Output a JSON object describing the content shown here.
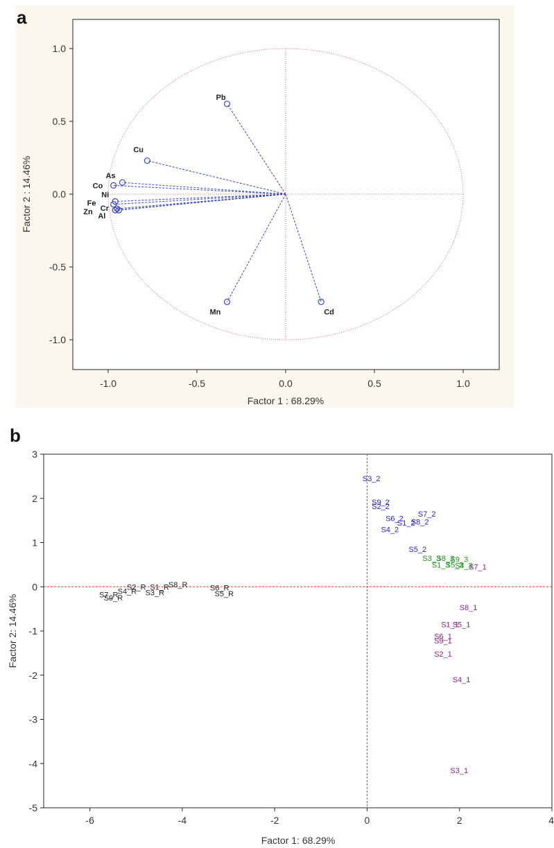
{
  "colors": {
    "loading_vector": "#3344cc",
    "circle": "#e06666",
    "ref_line": "#e06666",
    "panel_b_ref_line": "#ff3333",
    "series_R": "#222222",
    "series_1": "#882288",
    "series_2": "#2222cc",
    "series_3": "#119911"
  },
  "chart_data": [
    {
      "panel": "a",
      "type": "scatter",
      "title": "",
      "xlabel": "Factor 1 : 68.29%",
      "ylabel": "Factor 2 : 14.46%",
      "xlim": [
        -1.2,
        1.2
      ],
      "ylim": [
        -1.2,
        1.2
      ],
      "xticks": [
        "-1.0",
        "-0.5",
        "0.0",
        "0.5",
        "1.0"
      ],
      "yticks": [
        "1.0",
        "0.5",
        "0.0",
        "-0.5",
        "-1.0"
      ],
      "unit_circle": true,
      "grid": false,
      "points": [
        {
          "label": "Pb",
          "x": -0.33,
          "y": 0.62
        },
        {
          "label": "Cu",
          "x": -0.78,
          "y": 0.23
        },
        {
          "label": "As",
          "x": -0.92,
          "y": 0.08
        },
        {
          "label": "Co",
          "x": -0.97,
          "y": 0.06
        },
        {
          "label": "Ni",
          "x": -0.96,
          "y": -0.05
        },
        {
          "label": "Fe",
          "x": -0.97,
          "y": -0.07
        },
        {
          "label": "Cr",
          "x": -0.95,
          "y": -0.1
        },
        {
          "label": "Zn",
          "x": -0.96,
          "y": -0.11
        },
        {
          "label": "Al",
          "x": -0.94,
          "y": -0.11
        },
        {
          "label": "Mn",
          "x": -0.33,
          "y": -0.74
        },
        {
          "label": "Cd",
          "x": 0.2,
          "y": -0.74
        }
      ]
    },
    {
      "panel": "b",
      "type": "scatter",
      "title": "",
      "xlabel": "Factor 1: 68.29%",
      "ylabel": "Factor 2: 14.46%",
      "xlim": [
        -7,
        4
      ],
      "ylim": [
        -5,
        3
      ],
      "xticks": [
        "-6",
        "-4",
        "-2",
        "0",
        "2",
        "4"
      ],
      "yticks": [
        "3",
        "2",
        "1",
        "0",
        "-1",
        "-2",
        "-3",
        "-4",
        "-5"
      ],
      "grid": false,
      "series": [
        {
          "group": "R",
          "points": [
            {
              "label": "S2_R",
              "x": -5.2,
              "y": 0.0
            },
            {
              "label": "S1_R",
              "x": -4.7,
              "y": 0.0
            },
            {
              "label": "S8_R",
              "x": -4.3,
              "y": 0.05
            },
            {
              "label": "S6_R",
              "x": -3.4,
              "y": -0.02
            },
            {
              "label": "S5_R",
              "x": -3.3,
              "y": -0.15
            },
            {
              "label": "S3_R",
              "x": -4.8,
              "y": -0.13
            },
            {
              "label": "S4_R",
              "x": -5.4,
              "y": -0.1
            },
            {
              "label": "S7_R",
              "x": -5.8,
              "y": -0.18
            },
            {
              "label": "S9_R",
              "x": -5.7,
              "y": -0.25
            }
          ]
        },
        {
          "group": "2",
          "points": [
            {
              "label": "S3_2",
              "x": -0.1,
              "y": 2.45
            },
            {
              "label": "S9_2",
              "x": 0.1,
              "y": 1.92
            },
            {
              "label": "S2_2",
              "x": 0.1,
              "y": 1.82
            },
            {
              "label": "S7_2",
              "x": 1.1,
              "y": 1.65
            },
            {
              "label": "S6_2",
              "x": 0.4,
              "y": 1.55
            },
            {
              "label": "S1_2",
              "x": 0.65,
              "y": 1.45
            },
            {
              "label": "S8_2",
              "x": 0.95,
              "y": 1.47
            },
            {
              "label": "S4_2",
              "x": 0.3,
              "y": 1.3
            },
            {
              "label": "S5_2",
              "x": 0.9,
              "y": 0.85
            }
          ]
        },
        {
          "group": "3",
          "points": [
            {
              "label": "S3_3",
              "x": 1.2,
              "y": 0.65
            },
            {
              "label": "S8_3",
              "x": 1.5,
              "y": 0.65
            },
            {
              "label": "S9_3",
              "x": 1.8,
              "y": 0.62
            },
            {
              "label": "S1_3",
              "x": 1.4,
              "y": 0.5
            },
            {
              "label": "S5_3",
              "x": 1.7,
              "y": 0.5
            },
            {
              "label": "S4_3",
              "x": 1.9,
              "y": 0.48
            }
          ]
        },
        {
          "group": "1",
          "points": [
            {
              "label": "S7_1",
              "x": 2.2,
              "y": 0.45
            },
            {
              "label": "S8_1",
              "x": 2.0,
              "y": -0.47
            },
            {
              "label": "S1_1",
              "x": 1.6,
              "y": -0.85
            },
            {
              "label": "S5_1",
              "x": 1.85,
              "y": -0.85
            },
            {
              "label": "S6_1",
              "x": 1.45,
              "y": -1.12
            },
            {
              "label": "S9_1",
              "x": 1.45,
              "y": -1.22
            },
            {
              "label": "S2_1",
              "x": 1.45,
              "y": -1.52
            },
            {
              "label": "S4_1",
              "x": 1.85,
              "y": -2.1
            },
            {
              "label": "S3_1",
              "x": 1.8,
              "y": -4.15
            }
          ]
        }
      ]
    }
  ],
  "panels": {
    "a": {
      "letter": "a"
    },
    "b": {
      "letter": "b"
    }
  }
}
